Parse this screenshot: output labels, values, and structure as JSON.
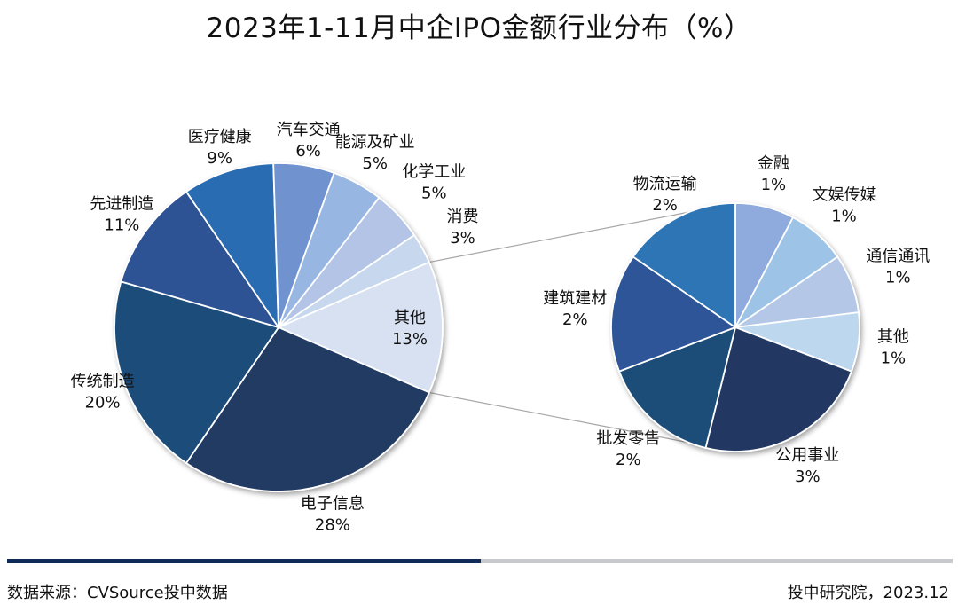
{
  "chart_data": {
    "type": "pie",
    "title": "2023年1-11月中企IPO金额行业分布（%）",
    "main_pie": {
      "slices": [
        {
          "label": "其他",
          "value": 13,
          "value_label": "13%",
          "color": "#d8e1f1"
        },
        {
          "label": "电子信息",
          "value": 28,
          "value_label": "28%",
          "color": "#213a64"
        },
        {
          "label": "传统制造",
          "value": 20,
          "value_label": "20%",
          "color": "#1e4e7a"
        },
        {
          "label": "先进制造",
          "value": 11,
          "value_label": "11%",
          "color": "#2e5395"
        },
        {
          "label": "医疗健康",
          "value": 9,
          "value_label": "9%",
          "color": "#2a6cb2"
        },
        {
          "label": "汽车交通",
          "value": 6,
          "value_label": "6%",
          "color": "#6f93d0"
        },
        {
          "label": "能源及矿业",
          "value": 5,
          "value_label": "5%",
          "color": "#97b7e2"
        },
        {
          "label": "化学工业",
          "value": 5,
          "value_label": "5%",
          "color": "#b3c4e6"
        },
        {
          "label": "消费",
          "value": 3,
          "value_label": "3%",
          "color": "#c7d8ee"
        }
      ]
    },
    "secondary_pie": {
      "breakdown_of": "其他",
      "slices": [
        {
          "label": "金融",
          "value": 1,
          "value_label": "1%",
          "color": "#8faadc"
        },
        {
          "label": "文娱传媒",
          "value": 1,
          "value_label": "1%",
          "color": "#9dc3e6"
        },
        {
          "label": "通信通讯",
          "value": 1,
          "value_label": "1%",
          "color": "#b4c7e7"
        },
        {
          "label": "其他",
          "value": 1,
          "value_label": "1%",
          "color": "#bdd7ee"
        },
        {
          "label": "公用事业",
          "value": 3,
          "value_label": "3%",
          "color": "#203864"
        },
        {
          "label": "批发零售",
          "value": 2,
          "value_label": "2%",
          "color": "#1f4e79"
        },
        {
          "label": "建筑建材",
          "value": 2,
          "value_label": "2%",
          "color": "#2f5597"
        },
        {
          "label": "物流运输",
          "value": 2,
          "value_label": "2%",
          "color": "#2e75b6"
        }
      ]
    }
  },
  "footer": {
    "source": "数据来源：CVSource投中数据",
    "credit": "投中研究院，2023.12"
  },
  "colors": {
    "footer_accent": "#0f2b57",
    "footer_bar": "#c7c9cc"
  }
}
